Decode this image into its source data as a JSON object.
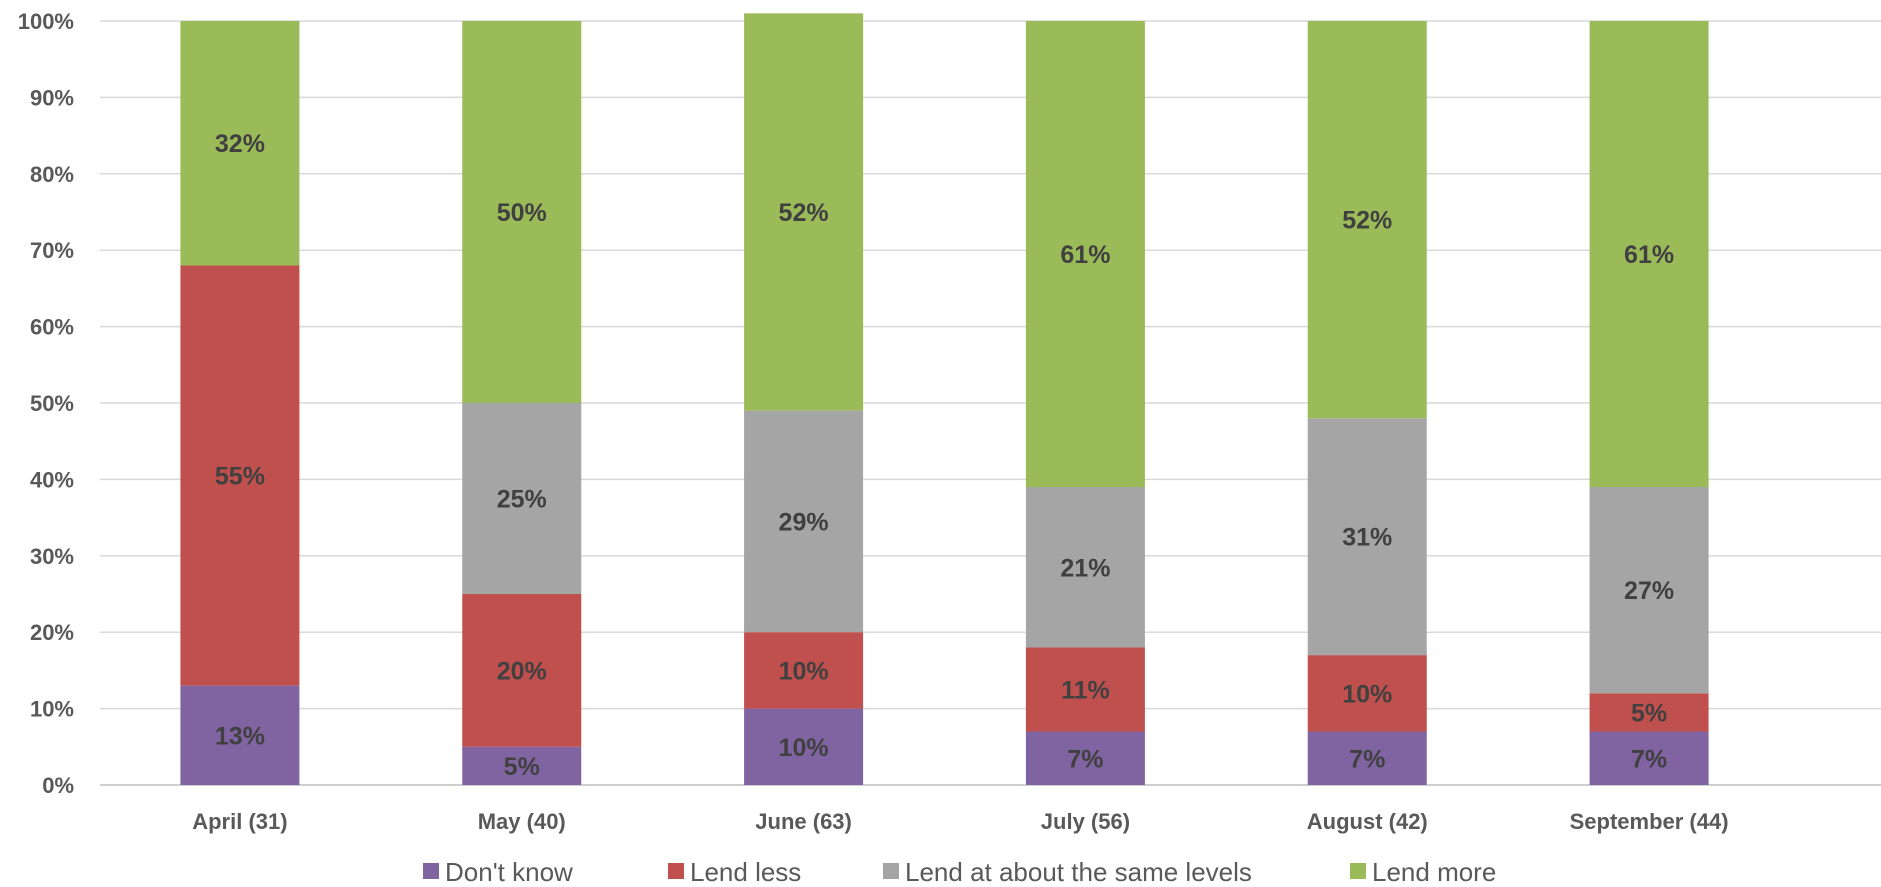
{
  "chart_data": {
    "type": "bar",
    "stacked": true,
    "percent_stacked": true,
    "categories": [
      "April (31)",
      "May (40)",
      "June (63)",
      "July (56)",
      "August (42)",
      "September (44)"
    ],
    "series": [
      {
        "name": "Don't know",
        "color": "#8064A2",
        "values": [
          13,
          5,
          10,
          7,
          7,
          7
        ],
        "labels": [
          "13%",
          "5%",
          "10%",
          "7%",
          "7%",
          "7%"
        ]
      },
      {
        "name": "Lend less",
        "color": "#C0504D",
        "values": [
          55,
          20,
          10,
          11,
          10,
          5
        ],
        "labels": [
          "55%",
          "20%",
          "10%",
          "11%",
          "10%",
          "5%"
        ]
      },
      {
        "name": "Lend at about the same levels",
        "color": "#A5A5A5",
        "values": [
          0,
          25,
          29,
          21,
          31,
          27
        ],
        "labels": [
          "",
          "25%",
          "29%",
          "21%",
          "31%",
          "27%"
        ]
      },
      {
        "name": "Lend more",
        "color": "#9BBB59",
        "values": [
          32,
          50,
          52,
          61,
          52,
          61
        ],
        "labels": [
          "32%",
          "50%",
          "52%",
          "61%",
          "52%",
          "61%"
        ]
      }
    ],
    "ylim": [
      0,
      100
    ],
    "yticks": [
      "0%",
      "10%",
      "20%",
      "30%",
      "40%",
      "50%",
      "60%",
      "70%",
      "80%",
      "90%",
      "100%"
    ],
    "grid": true,
    "legend_position": "bottom",
    "title": "",
    "xlabel": "",
    "ylabel": ""
  }
}
